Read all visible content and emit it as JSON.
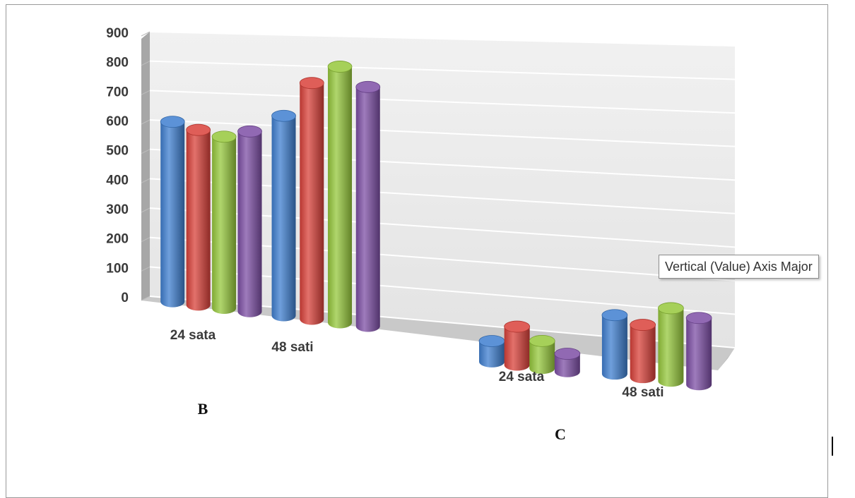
{
  "colors": {
    "blue": "#3f7fd0",
    "red": "#d9413a",
    "green": "#96c83c",
    "purple": "#7d4fa5",
    "wall": "#e9e9e9",
    "floor": "#c9c9c9",
    "side_wall": "#a7a7a7"
  },
  "tooltip": {
    "text": "Vertical (Value) Axis Major"
  },
  "chart_data": [
    {
      "type": "bar",
      "subtype": "3d-cylinder",
      "title": "",
      "panel_label": "B",
      "xlabel": "",
      "ylabel": "",
      "ylim": [
        0,
        900
      ],
      "yticks": [
        "900",
        "800",
        "700",
        "600",
        "500",
        "400",
        "300",
        "200",
        "100",
        "0"
      ],
      "grid": true,
      "legend": "none",
      "categories": [
        "24 sata",
        "48 sati"
      ],
      "series": [
        {
          "values": [
            610,
            660
          ],
          "color": "blue"
        },
        {
          "values": [
            590,
            775
          ],
          "color": "red"
        },
        {
          "values": [
            575,
            835
          ],
          "color": "green"
        },
        {
          "values": [
            600,
            775
          ],
          "color": "purple"
        }
      ]
    },
    {
      "type": "bar",
      "subtype": "3d-cylinder",
      "title": "",
      "panel_label": "C",
      "xlabel": "",
      "ylabel": "",
      "ylim": [
        0,
        900
      ],
      "grid": true,
      "legend": "none",
      "categories": [
        "24 sata",
        "48 sati"
      ],
      "series": [
        {
          "values": [
            65,
            180
          ],
          "color": "blue"
        },
        {
          "values": [
            120,
            160
          ],
          "color": "red"
        },
        {
          "values": [
            85,
            220
          ],
          "color": "green"
        },
        {
          "values": [
            55,
            200
          ],
          "color": "purple"
        }
      ]
    }
  ]
}
